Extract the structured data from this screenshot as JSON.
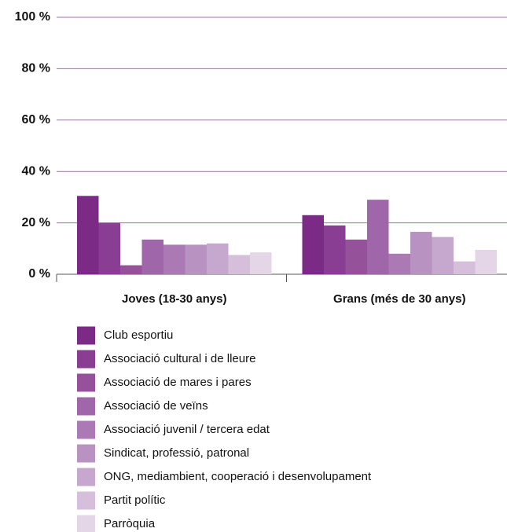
{
  "chart_data": {
    "type": "bar",
    "categories": [
      "Joves (18-30 anys)",
      "Grans (més de 30 anys)"
    ],
    "series": [
      {
        "name": "Club esportiu",
        "color": "#7b2a86",
        "values": [
          30.5,
          23
        ]
      },
      {
        "name": "Associació cultural i de lleure",
        "color": "#893e93",
        "values": [
          20,
          19
        ]
      },
      {
        "name": "Associació de mares i pares",
        "color": "#955199",
        "values": [
          3.5,
          13.5
        ]
      },
      {
        "name": "Associació de veïns",
        "color": "#a066aa",
        "values": [
          13.5,
          29
        ]
      },
      {
        "name": "Associació juvenil / tercera edat",
        "color": "#ab7ab5",
        "values": [
          11.5,
          8
        ]
      },
      {
        "name": "Sindicat, professió, patronal",
        "color": "#b892c1",
        "values": [
          11.5,
          16.5
        ]
      },
      {
        "name": "ONG, mediambient, cooperació i desenvolupament",
        "color": "#c6a8ce",
        "values": [
          12,
          14.5
        ]
      },
      {
        "name": "Partit polític",
        "color": "#d5bfdb",
        "values": [
          7.5,
          5
        ]
      },
      {
        "name": "Parròquia",
        "color": "#e4d5e7",
        "values": [
          8.5,
          9.5
        ]
      }
    ],
    "ylim": [
      0,
      100
    ],
    "yticks": [
      {
        "value": 0,
        "label": "0 %"
      },
      {
        "value": 20,
        "label": "20 %"
      },
      {
        "value": 40,
        "label": "40 %"
      },
      {
        "value": 60,
        "label": "60 %"
      },
      {
        "value": 80,
        "label": "80 %"
      },
      {
        "value": 100,
        "label": "100 %"
      }
    ],
    "grid": true,
    "legend": "bottom"
  }
}
